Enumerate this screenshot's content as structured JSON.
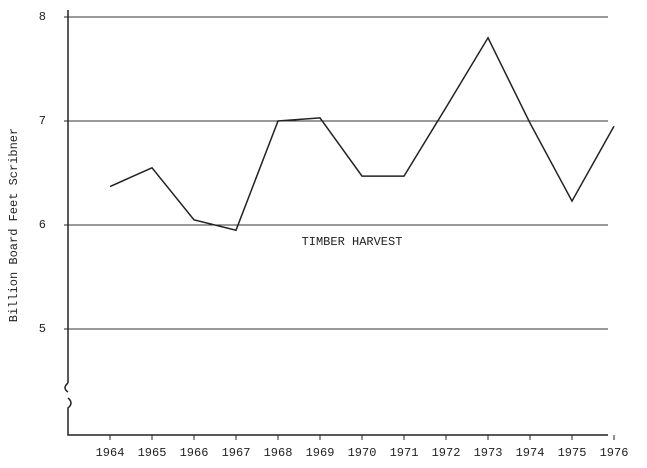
{
  "chart_data": {
    "type": "line",
    "y_label": "Billion Board Feet Scribner",
    "annotation": "TIMBER HARVEST",
    "categories": [
      "1964",
      "1965",
      "1966",
      "1967",
      "1968",
      "1969",
      "1970",
      "1971",
      "1972",
      "1973",
      "1974",
      "1975",
      "1976"
    ],
    "series": [
      {
        "name": "TIMBER HARVEST",
        "color": "#222222",
        "values": [
          6.37,
          6.55,
          6.05,
          5.95,
          7.0,
          7.03,
          6.47,
          6.47,
          7.13,
          7.8,
          6.98,
          6.23,
          6.95
        ]
      }
    ],
    "ylim": [
      4,
      8
    ],
    "yticks": [
      5,
      6,
      7,
      8
    ],
    "grid": true
  }
}
